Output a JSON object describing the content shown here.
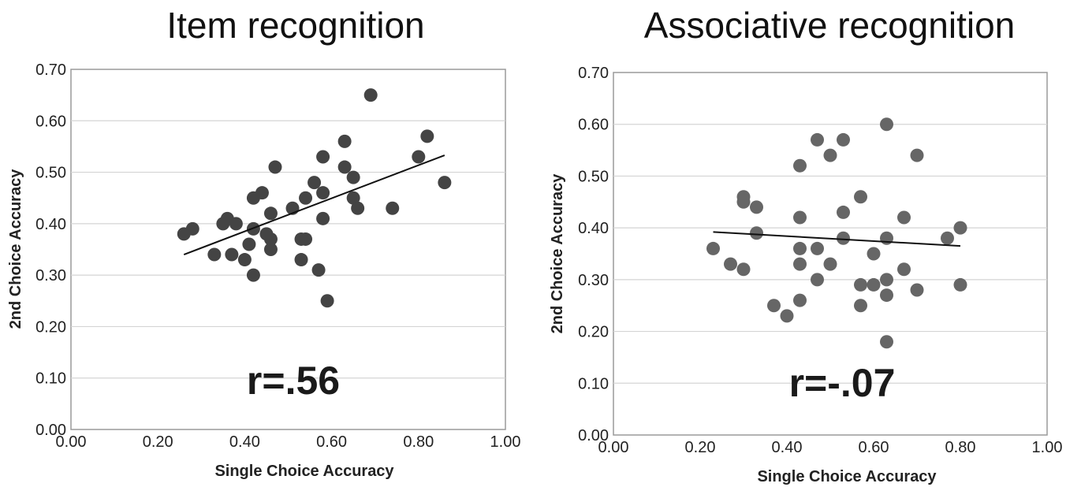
{
  "chart_data": [
    {
      "type": "scatter",
      "title": "Item recognition",
      "xlabel": "Single Choice Accuracy",
      "ylabel": "2nd Choice Accuracy",
      "xlim": [
        0,
        1
      ],
      "ylim": [
        0,
        0.7
      ],
      "x_ticks": [
        "0.00",
        "0.20",
        "0.40",
        "0.60",
        "0.80",
        "1.00"
      ],
      "y_ticks": [
        "0.00",
        "0.10",
        "0.20",
        "0.30",
        "0.40",
        "0.50",
        "0.60",
        "0.70"
      ],
      "grid": "horizontal",
      "annotation": "r=.56",
      "point_color": "#444444",
      "trendline": {
        "x": [
          0.26,
          0.86
        ],
        "y": [
          0.34,
          0.533
        ]
      },
      "points": [
        {
          "x": 0.26,
          "y": 0.38
        },
        {
          "x": 0.28,
          "y": 0.39
        },
        {
          "x": 0.33,
          "y": 0.34
        },
        {
          "x": 0.35,
          "y": 0.4
        },
        {
          "x": 0.36,
          "y": 0.41
        },
        {
          "x": 0.37,
          "y": 0.34
        },
        {
          "x": 0.38,
          "y": 0.4
        },
        {
          "x": 0.4,
          "y": 0.33
        },
        {
          "x": 0.41,
          "y": 0.36
        },
        {
          "x": 0.42,
          "y": 0.45
        },
        {
          "x": 0.42,
          "y": 0.39
        },
        {
          "x": 0.42,
          "y": 0.3
        },
        {
          "x": 0.44,
          "y": 0.46
        },
        {
          "x": 0.45,
          "y": 0.38
        },
        {
          "x": 0.46,
          "y": 0.37
        },
        {
          "x": 0.46,
          "y": 0.35
        },
        {
          "x": 0.46,
          "y": 0.42
        },
        {
          "x": 0.47,
          "y": 0.51
        },
        {
          "x": 0.51,
          "y": 0.43
        },
        {
          "x": 0.53,
          "y": 0.37
        },
        {
          "x": 0.54,
          "y": 0.37
        },
        {
          "x": 0.54,
          "y": 0.45
        },
        {
          "x": 0.56,
          "y": 0.48
        },
        {
          "x": 0.57,
          "y": 0.31
        },
        {
          "x": 0.58,
          "y": 0.53
        },
        {
          "x": 0.58,
          "y": 0.46
        },
        {
          "x": 0.58,
          "y": 0.41
        },
        {
          "x": 0.59,
          "y": 0.25
        },
        {
          "x": 0.63,
          "y": 0.56
        },
        {
          "x": 0.63,
          "y": 0.51
        },
        {
          "x": 0.65,
          "y": 0.49
        },
        {
          "x": 0.65,
          "y": 0.45
        },
        {
          "x": 0.66,
          "y": 0.43
        },
        {
          "x": 0.69,
          "y": 0.65
        },
        {
          "x": 0.74,
          "y": 0.43
        },
        {
          "x": 0.8,
          "y": 0.53
        },
        {
          "x": 0.82,
          "y": 0.57
        },
        {
          "x": 0.86,
          "y": 0.48
        },
        {
          "x": 0.53,
          "y": 0.33
        }
      ]
    },
    {
      "type": "scatter",
      "title": "Associative recognition",
      "xlabel": "Single Choice Accuracy",
      "ylabel": "2nd Choice Accuracy",
      "xlim": [
        0,
        1
      ],
      "ylim": [
        0,
        0.7
      ],
      "x_ticks": [
        "0.00",
        "0.20",
        "0.40",
        "0.60",
        "0.80",
        "1.00"
      ],
      "y_ticks": [
        "0.00",
        "0.10",
        "0.20",
        "0.30",
        "0.40",
        "0.50",
        "0.60",
        "0.70"
      ],
      "grid": "horizontal",
      "annotation": "r=-.07",
      "point_color": "#666666",
      "trendline": {
        "x": [
          0.23,
          0.8
        ],
        "y": [
          0.392,
          0.365
        ]
      },
      "points": [
        {
          "x": 0.23,
          "y": 0.36
        },
        {
          "x": 0.27,
          "y": 0.33
        },
        {
          "x": 0.3,
          "y": 0.46
        },
        {
          "x": 0.3,
          "y": 0.45
        },
        {
          "x": 0.3,
          "y": 0.32
        },
        {
          "x": 0.33,
          "y": 0.44
        },
        {
          "x": 0.33,
          "y": 0.39
        },
        {
          "x": 0.37,
          "y": 0.25
        },
        {
          "x": 0.4,
          "y": 0.23
        },
        {
          "x": 0.43,
          "y": 0.52
        },
        {
          "x": 0.43,
          "y": 0.42
        },
        {
          "x": 0.43,
          "y": 0.36
        },
        {
          "x": 0.43,
          "y": 0.33
        },
        {
          "x": 0.43,
          "y": 0.26
        },
        {
          "x": 0.47,
          "y": 0.57
        },
        {
          "x": 0.47,
          "y": 0.36
        },
        {
          "x": 0.47,
          "y": 0.3
        },
        {
          "x": 0.5,
          "y": 0.54
        },
        {
          "x": 0.5,
          "y": 0.33
        },
        {
          "x": 0.53,
          "y": 0.57
        },
        {
          "x": 0.53,
          "y": 0.43
        },
        {
          "x": 0.53,
          "y": 0.38
        },
        {
          "x": 0.57,
          "y": 0.46
        },
        {
          "x": 0.57,
          "y": 0.29
        },
        {
          "x": 0.57,
          "y": 0.25
        },
        {
          "x": 0.6,
          "y": 0.35
        },
        {
          "x": 0.6,
          "y": 0.29
        },
        {
          "x": 0.63,
          "y": 0.6
        },
        {
          "x": 0.63,
          "y": 0.38
        },
        {
          "x": 0.63,
          "y": 0.3
        },
        {
          "x": 0.63,
          "y": 0.27
        },
        {
          "x": 0.63,
          "y": 0.18
        },
        {
          "x": 0.67,
          "y": 0.42
        },
        {
          "x": 0.67,
          "y": 0.32
        },
        {
          "x": 0.7,
          "y": 0.54
        },
        {
          "x": 0.7,
          "y": 0.28
        },
        {
          "x": 0.77,
          "y": 0.38
        },
        {
          "x": 0.8,
          "y": 0.4
        },
        {
          "x": 0.8,
          "y": 0.29
        }
      ]
    }
  ]
}
